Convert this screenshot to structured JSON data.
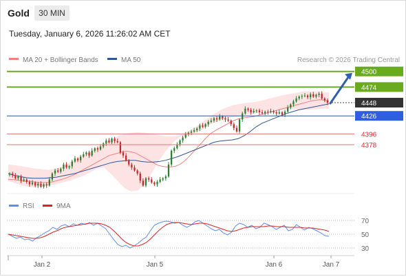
{
  "header": {
    "title": "Gold",
    "period_badge": "30 MIN",
    "datetime": "Tuesday, January 6, 2026 11:26:02 AM CET"
  },
  "legend": {
    "items": [
      {
        "label": "MA 20 + Bollinger Bands",
        "color": "#f08080"
      },
      {
        "label": "MA 50",
        "color": "#2f5597"
      }
    ],
    "copyright": "Research © 2026 Trading Central"
  },
  "colors": {
    "bull_candle": "#2e7d32",
    "bear_candle": "#c62828",
    "bollinger_fill": "#fde0e0",
    "ma20": "#f08080",
    "ma50": "#2f5597",
    "resistance": "#6aaa1e",
    "support_blue": "#2f5597",
    "support_red": "#e57373",
    "last_price_badge": "#333333",
    "rsi": "#5b8def",
    "rsi_ma": "#e02020",
    "arrow": "#2f5fa8"
  },
  "chart_data": [
    {
      "type": "candlestick",
      "title": "Gold",
      "timeframe": "30 MIN",
      "x_tick_labels": [
        "Jan 2",
        "Jan 5",
        "Jan 6",
        "Jan 7"
      ],
      "y_range": [
        4300,
        4510
      ],
      "last_price": 4448,
      "levels": [
        {
          "value": 4500,
          "kind": "resistance",
          "label": "4500",
          "color": "#6aaa1e"
        },
        {
          "value": 4474,
          "kind": "resistance",
          "label": "4474",
          "color": "#6aaa1e"
        },
        {
          "value": 4448,
          "kind": "last",
          "label": "4448",
          "color": "#333333"
        },
        {
          "value": 4426,
          "kind": "pivot",
          "label": "4426",
          "color": "#2f5fe0"
        },
        {
          "value": 4396,
          "kind": "support",
          "label": "4396",
          "color": "#e57373"
        },
        {
          "value": 4378,
          "kind": "support",
          "label": "4378",
          "color": "#e57373"
        }
      ],
      "target_arrow": {
        "from": 4448,
        "to": 4500
      },
      "close": [
        4330,
        4327,
        4322,
        4325,
        4318,
        4320,
        4316,
        4312,
        4315,
        4310,
        4313,
        4308,
        4312,
        4310,
        4320,
        4330,
        4335,
        4333,
        4338,
        4345,
        4340,
        4342,
        4350,
        4355,
        4352,
        4358,
        4362,
        4365,
        4360,
        4368,
        4372,
        4370,
        4375,
        4380,
        4385,
        4382,
        4388,
        4384,
        4382,
        4365,
        4360,
        4352,
        4345,
        4340,
        4335,
        4330,
        4318,
        4310,
        4322,
        4320,
        4315,
        4312,
        4316,
        4320,
        4322,
        4325,
        4345,
        4368,
        4372,
        4378,
        4385,
        4390,
        4395,
        4398,
        4400,
        4402,
        4405,
        4410,
        4408,
        4412,
        4416,
        4418,
        4422,
        4420,
        4425,
        4422,
        4420,
        4418,
        4412,
        4406,
        4400,
        4420,
        4430,
        4438,
        4436,
        4432,
        4434,
        4435,
        4432,
        4430,
        4433,
        4432,
        4434,
        4432,
        4430,
        4432,
        4428,
        4433,
        4440,
        4445,
        4450,
        4455,
        4458,
        4459,
        4460,
        4457,
        4462,
        4458,
        4461,
        4463,
        4455,
        4452,
        4448
      ],
      "ma20": [
        4320,
        4320,
        4319,
        4318,
        4317,
        4317,
        4316,
        4315,
        4315,
        4315,
        4316,
        4318,
        4320,
        4322,
        4325,
        4328,
        4332,
        4336,
        4340,
        4344,
        4348,
        4352,
        4356,
        4360,
        4362,
        4364,
        4366,
        4367,
        4366,
        4364,
        4360,
        4356,
        4352,
        4348,
        4344,
        4342,
        4341,
        4341,
        4342,
        4345,
        4350,
        4357,
        4365,
        4373,
        4381,
        4389,
        4396,
        4401,
        4405,
        4409,
        4413,
        4417,
        4420,
        4422,
        4423,
        4424,
        4425,
        4427,
        4429,
        4431,
        4433,
        4435,
        4437,
        4439,
        4441,
        4443,
        4445,
        4447,
        4449,
        4451,
        4452,
        4453,
        4452,
        4450
      ],
      "ma50": [
        4330,
        4327,
        4325,
        4323,
        4322,
        4322,
        4322,
        4323,
        4324,
        4326,
        4328,
        4330,
        4333,
        4336,
        4339,
        4342,
        4345,
        4348,
        4350,
        4351,
        4352,
        4352,
        4350,
        4349,
        4349,
        4350,
        4352,
        4355,
        4358,
        4362,
        4366,
        4370,
        4374,
        4378,
        4382,
        4384,
        4385,
        4386,
        4388,
        4393,
        4400,
        4408,
        4414,
        4418,
        4422,
        4426,
        4430,
        4433,
        4436,
        4438,
        4440,
        4442,
        4444,
        4446
      ],
      "bb_upper": [
        4345,
        4344,
        4342,
        4340,
        4338,
        4337,
        4336,
        4338,
        4342,
        4348,
        4354,
        4360,
        4366,
        4372,
        4380,
        4386,
        4392,
        4396,
        4398,
        4399,
        4398,
        4396,
        4394,
        4392,
        4392,
        4393,
        4398,
        4404,
        4412,
        4420,
        4428,
        4435,
        4440,
        4444,
        4446,
        4448,
        4449,
        4451,
        4454,
        4457,
        4460,
        4462,
        4464,
        4466,
        4467,
        4467,
        4466,
        4465
      ],
      "bb_lower": [
        4318,
        4314,
        4310,
        4308,
        4307,
        4308,
        4310,
        4312,
        4315,
        4318,
        4322,
        4326,
        4332,
        4338,
        4340,
        4330,
        4318,
        4306,
        4300,
        4302,
        4312,
        4330,
        4350,
        4366,
        4380,
        4390,
        4394,
        4396,
        4400,
        4408,
        4414,
        4418,
        4422,
        4424,
        4426,
        4428,
        4430,
        4432,
        4434,
        4436,
        4436,
        4437,
        4437,
        4436,
        4436,
        4437,
        4438,
        4438
      ]
    },
    {
      "type": "line",
      "title": "RSI",
      "y_ticks": [
        70,
        50,
        30
      ],
      "ylim": [
        22,
        78
      ],
      "series": [
        {
          "name": "RSI",
          "color": "#5b8def",
          "values": [
            50,
            47,
            44,
            46,
            42,
            43,
            40,
            45,
            48,
            52,
            55,
            60,
            57,
            62,
            64,
            61,
            65,
            63,
            66,
            64,
            67,
            63,
            66,
            62,
            58,
            50,
            42,
            35,
            32,
            34,
            30,
            33,
            37,
            42,
            46,
            55,
            63,
            66,
            68,
            69,
            68,
            66,
            67,
            63,
            60,
            63,
            68,
            70,
            66,
            62,
            58,
            55,
            57,
            52,
            49,
            53,
            62,
            66,
            64,
            60,
            63,
            58,
            60,
            66,
            64,
            61,
            57,
            60,
            63,
            55,
            57,
            64,
            60,
            56,
            60,
            58,
            55,
            52,
            48,
            47
          ]
        },
        {
          "name": "9MA",
          "color": "#e02020",
          "values": [
            50,
            49,
            48,
            47,
            46,
            45,
            44,
            44,
            45,
            47,
            50,
            53,
            55,
            58,
            60,
            61,
            62,
            63,
            64,
            65,
            66,
            66,
            66,
            65,
            63,
            60,
            55,
            49,
            43,
            38,
            35,
            33,
            33,
            35,
            38,
            43,
            49,
            55,
            60,
            64,
            66,
            67,
            67,
            66,
            65,
            64,
            65,
            66,
            66,
            65,
            63,
            61,
            59,
            57,
            55,
            54,
            55,
            57,
            59,
            60,
            61,
            61,
            61,
            61,
            62,
            62,
            61,
            61,
            61,
            60,
            60,
            60,
            60,
            59,
            59,
            59,
            58,
            57,
            56,
            54
          ]
        }
      ]
    }
  ]
}
